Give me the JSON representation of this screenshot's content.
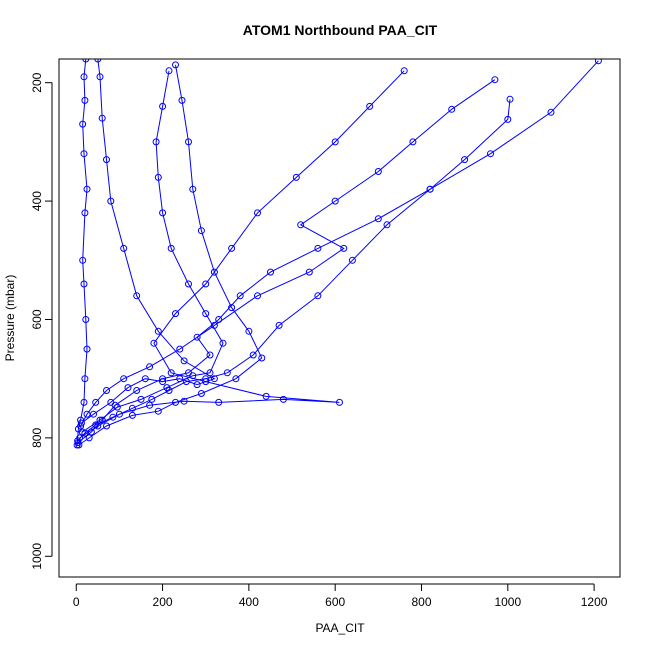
{
  "chart_data": {
    "type": "scatter",
    "title": "ATOM1 Northbound PAA_CIT",
    "xlabel": "PAA_CIT",
    "ylabel": "Pressure (mbar)",
    "xlim": [
      -40,
      1260
    ],
    "ylim": [
      1035,
      160
    ],
    "y_reversed": true,
    "x_ticks": [
      0,
      200,
      400,
      600,
      800,
      1000,
      1200
    ],
    "y_ticks": [
      200,
      400,
      600,
      800,
      1000
    ],
    "grid": false,
    "legend": "none",
    "color": "#0000FF",
    "marker": "open-circle",
    "series": [
      {
        "values": [
          {
            "x": 2,
            "y": 812
          },
          {
            "x": 5,
            "y": 785
          },
          {
            "x": 10,
            "y": 770
          },
          {
            "x": 18,
            "y": 740
          },
          {
            "x": 20,
            "y": 700
          },
          {
            "x": 25,
            "y": 650
          },
          {
            "x": 22,
            "y": 600
          },
          {
            "x": 18,
            "y": 540
          },
          {
            "x": 15,
            "y": 500
          },
          {
            "x": 20,
            "y": 420
          },
          {
            "x": 25,
            "y": 380
          },
          {
            "x": 18,
            "y": 320
          },
          {
            "x": 15,
            "y": 270
          },
          {
            "x": 20,
            "y": 230
          },
          {
            "x": 18,
            "y": 190
          },
          {
            "x": 22,
            "y": 160
          }
        ]
      },
      {
        "values": [
          {
            "x": 4,
            "y": 808
          },
          {
            "x": 35,
            "y": 790
          },
          {
            "x": 60,
            "y": 770
          },
          {
            "x": 90,
            "y": 745
          },
          {
            "x": 140,
            "y": 720
          },
          {
            "x": 200,
            "y": 700
          },
          {
            "x": 260,
            "y": 690
          },
          {
            "x": 310,
            "y": 660
          },
          {
            "x": 280,
            "y": 630
          },
          {
            "x": 330,
            "y": 600
          },
          {
            "x": 380,
            "y": 560
          },
          {
            "x": 450,
            "y": 520
          },
          {
            "x": 560,
            "y": 480
          },
          {
            "x": 700,
            "y": 430
          },
          {
            "x": 820,
            "y": 380
          },
          {
            "x": 960,
            "y": 320
          },
          {
            "x": 1100,
            "y": 250
          },
          {
            "x": 1210,
            "y": 163
          }
        ]
      },
      {
        "values": [
          {
            "x": 8,
            "y": 800
          },
          {
            "x": 50,
            "y": 780
          },
          {
            "x": 100,
            "y": 760
          },
          {
            "x": 170,
            "y": 745
          },
          {
            "x": 250,
            "y": 738
          },
          {
            "x": 330,
            "y": 740
          },
          {
            "x": 480,
            "y": 735
          },
          {
            "x": 610,
            "y": 740
          },
          {
            "x": 440,
            "y": 730
          },
          {
            "x": 300,
            "y": 705
          },
          {
            "x": 220,
            "y": 690
          },
          {
            "x": 180,
            "y": 640
          },
          {
            "x": 230,
            "y": 590
          },
          {
            "x": 300,
            "y": 540
          },
          {
            "x": 360,
            "y": 480
          },
          {
            "x": 420,
            "y": 420
          },
          {
            "x": 510,
            "y": 360
          },
          {
            "x": 600,
            "y": 300
          },
          {
            "x": 680,
            "y": 240
          },
          {
            "x": 760,
            "y": 180
          }
        ]
      },
      {
        "values": [
          {
            "x": 12,
            "y": 775
          },
          {
            "x": 40,
            "y": 760
          },
          {
            "x": 80,
            "y": 740
          },
          {
            "x": 120,
            "y": 715
          },
          {
            "x": 160,
            "y": 700
          },
          {
            "x": 200,
            "y": 705
          },
          {
            "x": 240,
            "y": 700
          },
          {
            "x": 280,
            "y": 710
          },
          {
            "x": 320,
            "y": 700
          },
          {
            "x": 250,
            "y": 670
          },
          {
            "x": 190,
            "y": 620
          },
          {
            "x": 140,
            "y": 560
          },
          {
            "x": 110,
            "y": 480
          },
          {
            "x": 80,
            "y": 400
          },
          {
            "x": 70,
            "y": 330
          },
          {
            "x": 60,
            "y": 260
          },
          {
            "x": 55,
            "y": 190
          },
          {
            "x": 50,
            "y": 160
          }
        ]
      },
      {
        "values": [
          {
            "x": 6,
            "y": 812
          },
          {
            "x": 30,
            "y": 800
          },
          {
            "x": 70,
            "y": 780
          },
          {
            "x": 130,
            "y": 762
          },
          {
            "x": 190,
            "y": 755
          },
          {
            "x": 230,
            "y": 740
          },
          {
            "x": 290,
            "y": 725
          },
          {
            "x": 370,
            "y": 700
          },
          {
            "x": 430,
            "y": 665
          },
          {
            "x": 400,
            "y": 620
          },
          {
            "x": 360,
            "y": 580
          },
          {
            "x": 320,
            "y": 520
          },
          {
            "x": 290,
            "y": 450
          },
          {
            "x": 270,
            "y": 380
          },
          {
            "x": 260,
            "y": 300
          },
          {
            "x": 245,
            "y": 230
          },
          {
            "x": 230,
            "y": 170
          }
        ]
      },
      {
        "values": [
          {
            "x": 10,
            "y": 780
          },
          {
            "x": 25,
            "y": 760
          },
          {
            "x": 45,
            "y": 740
          },
          {
            "x": 70,
            "y": 720
          },
          {
            "x": 110,
            "y": 700
          },
          {
            "x": 170,
            "y": 680
          },
          {
            "x": 240,
            "y": 650
          },
          {
            "x": 320,
            "y": 610
          },
          {
            "x": 420,
            "y": 560
          },
          {
            "x": 540,
            "y": 520
          },
          {
            "x": 620,
            "y": 480
          },
          {
            "x": 520,
            "y": 440
          },
          {
            "x": 600,
            "y": 400
          },
          {
            "x": 700,
            "y": 350
          },
          {
            "x": 780,
            "y": 300
          },
          {
            "x": 870,
            "y": 245
          },
          {
            "x": 970,
            "y": 195
          }
        ]
      },
      {
        "values": [
          {
            "x": 14,
            "y": 790
          },
          {
            "x": 55,
            "y": 770
          },
          {
            "x": 95,
            "y": 748
          },
          {
            "x": 150,
            "y": 735
          },
          {
            "x": 210,
            "y": 715
          },
          {
            "x": 270,
            "y": 695
          },
          {
            "x": 310,
            "y": 690
          },
          {
            "x": 340,
            "y": 640
          },
          {
            "x": 300,
            "y": 590
          },
          {
            "x": 260,
            "y": 540
          },
          {
            "x": 220,
            "y": 480
          },
          {
            "x": 200,
            "y": 420
          },
          {
            "x": 190,
            "y": 360
          },
          {
            "x": 185,
            "y": 300
          },
          {
            "x": 200,
            "y": 240
          },
          {
            "x": 215,
            "y": 180
          }
        ]
      },
      {
        "values": [
          {
            "x": 3,
            "y": 805
          },
          {
            "x": 20,
            "y": 792
          },
          {
            "x": 45,
            "y": 778
          },
          {
            "x": 85,
            "y": 765
          },
          {
            "x": 130,
            "y": 750
          },
          {
            "x": 175,
            "y": 735
          },
          {
            "x": 215,
            "y": 720
          },
          {
            "x": 255,
            "y": 705
          },
          {
            "x": 300,
            "y": 700
          },
          {
            "x": 350,
            "y": 690
          },
          {
            "x": 410,
            "y": 660
          },
          {
            "x": 470,
            "y": 610
          },
          {
            "x": 560,
            "y": 560
          },
          {
            "x": 640,
            "y": 500
          },
          {
            "x": 720,
            "y": 440
          },
          {
            "x": 820,
            "y": 380
          },
          {
            "x": 900,
            "y": 330
          },
          {
            "x": 1000,
            "y": 262
          },
          {
            "x": 1005,
            "y": 228
          }
        ]
      }
    ]
  }
}
